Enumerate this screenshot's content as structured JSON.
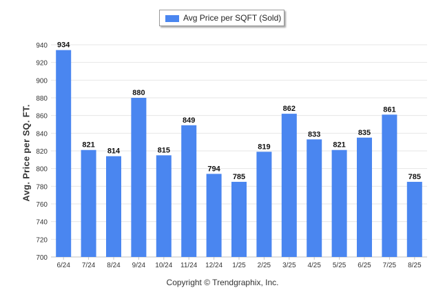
{
  "legend": {
    "label": "Avg Price per SQFT (Sold)"
  },
  "copyright": "Copyright © Trendgraphix, Inc.",
  "colors": {
    "bar": "#4A86F0",
    "grid": "#e6e6e6",
    "axis": "#c0c0c0",
    "text": "#333333"
  },
  "chart_data": {
    "type": "bar",
    "title": "",
    "xlabel": "",
    "ylabel": "Avg. Price per SQ. FT.",
    "categories": [
      "6/24",
      "7/24",
      "8/24",
      "9/24",
      "10/24",
      "11/24",
      "12/24",
      "1/25",
      "2/25",
      "3/25",
      "4/25",
      "5/25",
      "6/25",
      "7/25",
      "8/25"
    ],
    "series": [
      {
        "name": "Avg Price per SQFT (Sold)",
        "values": [
          934,
          821,
          814,
          880,
          815,
          849,
          794,
          785,
          819,
          862,
          833,
          821,
          835,
          861,
          785
        ]
      }
    ],
    "ylim": [
      700,
      940
    ],
    "yticks": [
      700,
      720,
      740,
      760,
      780,
      800,
      820,
      840,
      860,
      880,
      900,
      920,
      940
    ],
    "grid": true,
    "legend_position": "top-center",
    "data_labels": true
  }
}
